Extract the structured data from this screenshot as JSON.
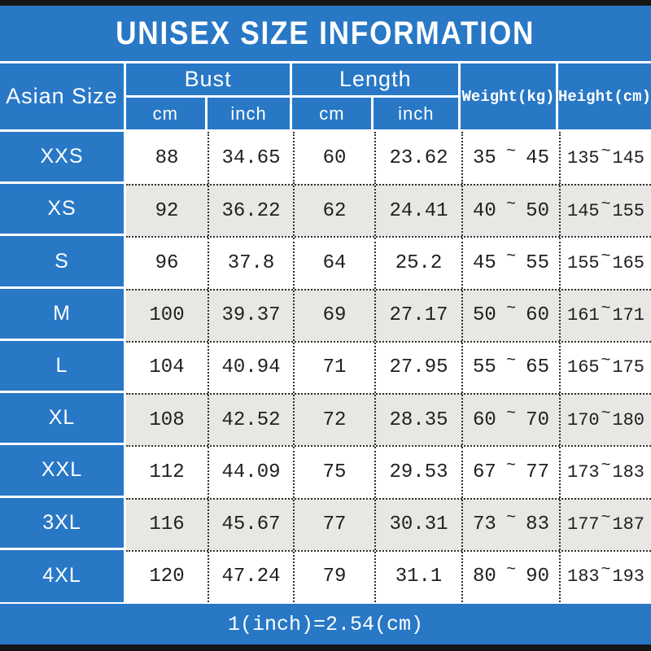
{
  "title": "UNISEX SIZE INFORMATION",
  "tilde": "~",
  "footer_note": "1(inch)=2.54(cm)",
  "colors": {
    "accent_blue": "#2878c6",
    "alt_row_gray": "#e8e7e4",
    "strip_black": "#161616"
  },
  "header": {
    "size_label": "Asian Size",
    "bust_label": "Bust",
    "length_label": "Length",
    "cm_label": "cm",
    "inch_label": "inch",
    "weight_label": "Weight(kg)",
    "height_label": "Height(cm)"
  },
  "table": {
    "rows": [
      {
        "size": "XXS",
        "bust_cm": "88",
        "bust_inch": "34.65",
        "length_cm": "60",
        "length_inch": "23.62",
        "weight_min": "35",
        "weight_max": "45",
        "height_min": "135",
        "height_max": "145"
      },
      {
        "size": "XS",
        "bust_cm": "92",
        "bust_inch": "36.22",
        "length_cm": "62",
        "length_inch": "24.41",
        "weight_min": "40",
        "weight_max": "50",
        "height_min": "145",
        "height_max": "155"
      },
      {
        "size": "S",
        "bust_cm": "96",
        "bust_inch": "37.8",
        "length_cm": "64",
        "length_inch": "25.2",
        "weight_min": "45",
        "weight_max": "55",
        "height_min": "155",
        "height_max": "165"
      },
      {
        "size": "M",
        "bust_cm": "100",
        "bust_inch": "39.37",
        "length_cm": "69",
        "length_inch": "27.17",
        "weight_min": "50",
        "weight_max": "60",
        "height_min": "161",
        "height_max": "171"
      },
      {
        "size": "L",
        "bust_cm": "104",
        "bust_inch": "40.94",
        "length_cm": "71",
        "length_inch": "27.95",
        "weight_min": "55",
        "weight_max": "65",
        "height_min": "165",
        "height_max": "175"
      },
      {
        "size": "XL",
        "bust_cm": "108",
        "bust_inch": "42.52",
        "length_cm": "72",
        "length_inch": "28.35",
        "weight_min": "60",
        "weight_max": "70",
        "height_min": "170",
        "height_max": "180"
      },
      {
        "size": "XXL",
        "bust_cm": "112",
        "bust_inch": "44.09",
        "length_cm": "75",
        "length_inch": "29.53",
        "weight_min": "67",
        "weight_max": "77",
        "height_min": "173",
        "height_max": "183"
      },
      {
        "size": "3XL",
        "bust_cm": "116",
        "bust_inch": "45.67",
        "length_cm": "77",
        "length_inch": "30.31",
        "weight_min": "73",
        "weight_max": "83",
        "height_min": "177",
        "height_max": "187"
      },
      {
        "size": "4XL",
        "bust_cm": "120",
        "bust_inch": "47.24",
        "length_cm": "79",
        "length_inch": "31.1",
        "weight_min": "80",
        "weight_max": "90",
        "height_min": "183",
        "height_max": "193"
      }
    ]
  },
  "chart_data": {
    "type": "table",
    "title": "UNISEX SIZE INFORMATION",
    "columns": [
      "Asian Size",
      "Bust cm",
      "Bust inch",
      "Length cm",
      "Length inch",
      "Weight(kg)",
      "Height(cm)"
    ],
    "rows": [
      [
        "XXS",
        88,
        34.65,
        60,
        23.62,
        "35~45",
        "135~145"
      ],
      [
        "XS",
        92,
        36.22,
        62,
        24.41,
        "40~50",
        "145~155"
      ],
      [
        "S",
        96,
        37.8,
        64,
        25.2,
        "45~55",
        "155~165"
      ],
      [
        "M",
        100,
        39.37,
        69,
        27.17,
        "50~60",
        "161~171"
      ],
      [
        "L",
        104,
        40.94,
        71,
        27.95,
        "55~65",
        "165~175"
      ],
      [
        "XL",
        108,
        42.52,
        72,
        28.35,
        "60~70",
        "170~180"
      ],
      [
        "XXL",
        112,
        44.09,
        75,
        29.53,
        "67~77",
        "173~183"
      ],
      [
        "3XL",
        116,
        45.67,
        77,
        30.31,
        "73~83",
        "177~187"
      ],
      [
        "4XL",
        120,
        47.24,
        79,
        31.1,
        "80~90",
        "183~193"
      ]
    ],
    "note": "1(inch)=2.54(cm)"
  }
}
